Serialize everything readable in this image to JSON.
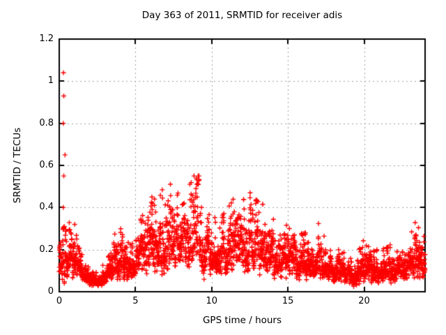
{
  "chart_data": {
    "type": "scatter",
    "title": "Day 363 of 2011, SRMTID for receiver adis",
    "xlabel": "GPS time / hours",
    "ylabel": "SRMTID / TECUs",
    "xlim": [
      0,
      24
    ],
    "ylim": [
      0,
      1.2
    ],
    "xticks": [
      {
        "value": 0,
        "label": "0"
      },
      {
        "value": 5,
        "label": "5"
      },
      {
        "value": 10,
        "label": "10"
      },
      {
        "value": 15,
        "label": "15"
      },
      {
        "value": 20,
        "label": "20"
      }
    ],
    "yticks": [
      {
        "value": 0,
        "label": "0"
      },
      {
        "value": 0.2,
        "label": "0.2"
      },
      {
        "value": 0.4,
        "label": "0.4"
      },
      {
        "value": 0.6,
        "label": "0.6"
      },
      {
        "value": 0.8,
        "label": "0.8"
      },
      {
        "value": 1,
        "label": "1"
      },
      {
        "value": 1.2,
        "label": "1.2"
      }
    ],
    "grid": {
      "show": true,
      "style": "dotted",
      "color": "#9e9e9e"
    },
    "legend": "none",
    "marker": {
      "shape": "plus",
      "color": "#ff0000",
      "size": 7
    },
    "axis_color": "#000000",
    "background": "#ffffff",
    "outlier_points": [
      [
        0.28,
        1.04
      ],
      [
        0.3,
        0.93
      ],
      [
        0.27,
        0.8
      ],
      [
        0.38,
        0.65
      ],
      [
        0.3,
        0.55
      ],
      [
        0.27,
        0.4
      ],
      [
        0.33,
        0.31
      ]
    ],
    "peak_points": [
      [
        6.08,
        0.45
      ],
      [
        6.12,
        0.42
      ],
      [
        6.1,
        0.39
      ],
      [
        7.45,
        0.39
      ],
      [
        8.97,
        0.49
      ],
      [
        9.0,
        0.54
      ],
      [
        9.02,
        0.51
      ],
      [
        9.05,
        0.45
      ],
      [
        10.25,
        0.33
      ],
      [
        11.7,
        0.35
      ],
      [
        12.7,
        0.35
      ],
      [
        13.5,
        0.32
      ],
      [
        15.1,
        0.3
      ],
      [
        17.0,
        0.26
      ],
      [
        19.9,
        0.21
      ],
      [
        23.4,
        0.27
      ]
    ],
    "band_envelope": {
      "description": "dense scatter band read off the plot: [hour, median value, relative spread factor]",
      "keyframes": [
        [
          0.0,
          0.1,
          1.2
        ],
        [
          0.5,
          0.17,
          1.25
        ],
        [
          1.0,
          0.16,
          1.1
        ],
        [
          1.5,
          0.1,
          1.0
        ],
        [
          2.0,
          0.055,
          0.9
        ],
        [
          2.5,
          0.045,
          0.9
        ],
        [
          3.0,
          0.06,
          0.9
        ],
        [
          3.5,
          0.12,
          1.0
        ],
        [
          4.0,
          0.14,
          1.0
        ],
        [
          4.5,
          0.105,
          1.0
        ],
        [
          5.0,
          0.135,
          1.0
        ],
        [
          5.5,
          0.17,
          1.1
        ],
        [
          6.0,
          0.23,
          1.15
        ],
        [
          6.5,
          0.2,
          1.1
        ],
        [
          7.0,
          0.25,
          1.1
        ],
        [
          7.5,
          0.23,
          1.0
        ],
        [
          8.0,
          0.21,
          1.0
        ],
        [
          8.5,
          0.25,
          1.1
        ],
        [
          9.0,
          0.33,
          1.15
        ],
        [
          9.5,
          0.17,
          1.0
        ],
        [
          10.0,
          0.18,
          1.0
        ],
        [
          10.5,
          0.16,
          1.0
        ],
        [
          11.0,
          0.18,
          1.0
        ],
        [
          11.5,
          0.21,
          1.0
        ],
        [
          12.0,
          0.2,
          1.0
        ],
        [
          12.5,
          0.22,
          1.0
        ],
        [
          13.0,
          0.2,
          1.0
        ],
        [
          13.5,
          0.19,
          1.0
        ],
        [
          14.0,
          0.16,
          1.0
        ],
        [
          14.5,
          0.15,
          1.0
        ],
        [
          15.0,
          0.18,
          1.05
        ],
        [
          15.5,
          0.14,
          1.0
        ],
        [
          16.0,
          0.13,
          1.0
        ],
        [
          16.5,
          0.125,
          1.0
        ],
        [
          17.0,
          0.15,
          1.05
        ],
        [
          17.5,
          0.115,
          1.0
        ],
        [
          18.0,
          0.11,
          1.0
        ],
        [
          18.5,
          0.095,
          1.0
        ],
        [
          19.0,
          0.085,
          1.0
        ],
        [
          19.5,
          0.065,
          1.0
        ],
        [
          20.0,
          0.13,
          1.1
        ],
        [
          20.5,
          0.1,
          1.0
        ],
        [
          21.0,
          0.09,
          1.0
        ],
        [
          21.5,
          0.095,
          1.0
        ],
        [
          22.0,
          0.11,
          1.0
        ],
        [
          22.5,
          0.105,
          1.0
        ],
        [
          23.0,
          0.12,
          1.0
        ],
        [
          23.5,
          0.165,
          1.05
        ],
        [
          24.0,
          0.135,
          1.0
        ]
      ]
    },
    "sampling": {
      "points_per_hour": 120,
      "seed": 363
    }
  }
}
